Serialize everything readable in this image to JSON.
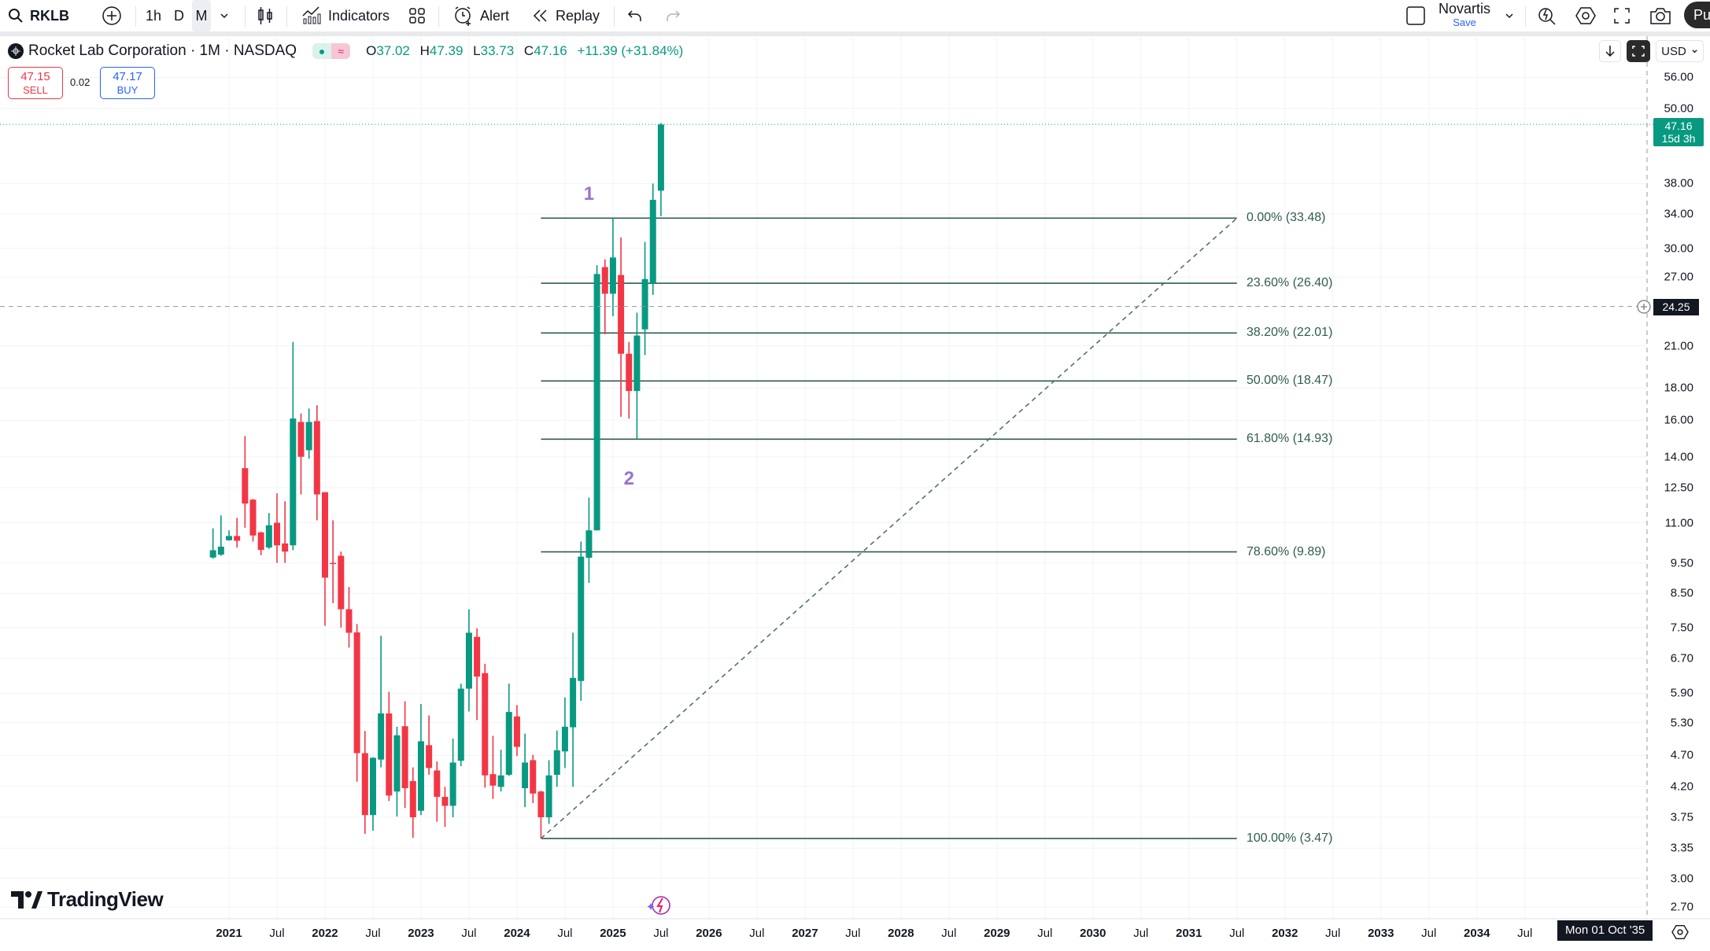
{
  "toolbar": {
    "symbol": "RKLB",
    "intervals": [
      "1h",
      "D",
      "M"
    ],
    "selected_interval": "M",
    "indicators_label": "Indicators",
    "alert_label": "Alert",
    "replay_label": "Replay",
    "layout_name": "Novartis",
    "save_label": "Save",
    "publish_label": "Pu"
  },
  "legend": {
    "title": "Rocket Lab Corporation · 1M · NASDAQ",
    "open_key": "O",
    "open": "37.02",
    "high_key": "H",
    "high": "47.39",
    "low_key": "L",
    "low": "33.73",
    "close_key": "C",
    "close": "47.16",
    "change": "+11.39 (+31.84%)"
  },
  "trade": {
    "sell_price": "47.15",
    "sell_label": "SELL",
    "spread": "0.02",
    "buy_price": "47.17",
    "buy_label": "BUY"
  },
  "currency": "USD",
  "colors": {
    "up": "#089981",
    "down": "#f23645",
    "fib": "#2f5d50",
    "wave_label": "#9575cd",
    "sell": "#f23645",
    "buy": "#2962ff"
  },
  "price_axis": {
    "ticks": [
      "56.00",
      "50.00",
      "38.00",
      "34.00",
      "30.00",
      "27.00",
      "21.00",
      "18.00",
      "16.00",
      "14.00",
      "12.50",
      "11.00",
      "9.50",
      "8.50",
      "7.50",
      "6.70",
      "5.90",
      "5.30",
      "4.70",
      "4.20",
      "3.75",
      "3.35",
      "3.00",
      "2.70"
    ],
    "last_price": "47.16",
    "countdown": "15d 3h",
    "crosshair_price": "24.25"
  },
  "time_axis": {
    "labels": [
      "2021",
      "Jul",
      "2022",
      "Jul",
      "2023",
      "Jul",
      "2024",
      "Jul",
      "2025",
      "Jul",
      "2026",
      "Jul",
      "2027",
      "Jul",
      "2028",
      "Jul",
      "2029",
      "Jul",
      "2030",
      "Jul",
      "2031",
      "Jul",
      "2032",
      "Jul",
      "2033",
      "Jul",
      "2034",
      "Jul"
    ],
    "crosshair_date": "Mon 01 Oct '35"
  },
  "wave_labels": [
    {
      "text": "1",
      "date": "2024-10",
      "price": 36.5
    },
    {
      "text": "2",
      "date": "2025-03",
      "price": 12.9
    }
  ],
  "branding": "TradingView",
  "chart_data": {
    "type": "candlestick",
    "scale": "log",
    "ylim": [
      2.6,
      58
    ],
    "fields": [
      "date",
      "open",
      "high",
      "low",
      "close"
    ],
    "candles": [
      [
        "2020-11",
        9.69,
        10.78,
        9.65,
        9.95
      ],
      [
        "2020-12",
        9.79,
        11.3,
        9.75,
        10.08
      ],
      [
        "2021-01",
        10.32,
        10.7,
        10.3,
        10.48
      ],
      [
        "2021-02",
        10.48,
        11.2,
        10.05,
        10.3
      ],
      [
        "2021-03",
        13.43,
        15.1,
        10.8,
        11.8
      ],
      [
        "2021-04",
        11.97,
        12.0,
        10.27,
        10.5
      ],
      [
        "2021-05",
        10.62,
        10.65,
        9.77,
        9.96
      ],
      [
        "2021-06",
        10.05,
        11.4,
        10.0,
        10.9
      ],
      [
        "2021-07",
        11.0,
        12.25,
        9.5,
        10.13
      ],
      [
        "2021-08",
        10.2,
        11.9,
        9.5,
        9.9
      ],
      [
        "2021-09",
        10.13,
        21.3,
        9.95,
        16.1
      ],
      [
        "2021-10",
        15.9,
        16.4,
        12.2,
        14.0
      ],
      [
        "2021-11",
        14.34,
        16.7,
        13.9,
        15.9
      ],
      [
        "2021-12",
        15.95,
        16.9,
        11.1,
        12.2
      ],
      [
        "2022-01",
        12.3,
        12.3,
        7.55,
        9.0
      ],
      [
        "2022-02",
        9.5,
        11.1,
        8.2,
        9.48
      ],
      [
        "2022-03",
        9.75,
        9.9,
        7.5,
        8.02
      ],
      [
        "2022-04",
        8.02,
        8.7,
        6.97,
        7.36
      ],
      [
        "2022-05",
        7.37,
        7.6,
        4.27,
        4.74
      ],
      [
        "2022-06",
        4.74,
        5.14,
        3.53,
        3.78
      ],
      [
        "2022-07",
        3.78,
        4.67,
        3.57,
        4.66
      ],
      [
        "2022-08",
        4.63,
        7.28,
        4.5,
        5.48
      ],
      [
        "2022-09",
        5.48,
        5.93,
        3.98,
        4.06
      ],
      [
        "2022-10",
        4.12,
        5.22,
        3.76,
        5.06
      ],
      [
        "2022-11",
        5.23,
        5.73,
        3.88,
        4.17
      ],
      [
        "2022-12",
        4.28,
        4.5,
        3.48,
        3.75
      ],
      [
        "2023-01",
        3.84,
        5.67,
        3.78,
        4.95
      ],
      [
        "2023-02",
        4.88,
        5.44,
        4.38,
        4.49
      ],
      [
        "2023-03",
        4.45,
        4.6,
        3.69,
        4.04
      ],
      [
        "2023-04",
        4.04,
        4.19,
        3.62,
        3.91
      ],
      [
        "2023-05",
        3.91,
        5.0,
        3.75,
        4.58
      ],
      [
        "2023-06",
        4.61,
        6.11,
        4.52,
        6.0
      ],
      [
        "2023-07",
        6.0,
        8.02,
        5.52,
        7.36
      ],
      [
        "2023-08",
        7.25,
        7.48,
        5.35,
        6.27
      ],
      [
        "2023-09",
        6.35,
        6.57,
        4.18,
        4.37
      ],
      [
        "2023-10",
        4.39,
        5.05,
        4.01,
        4.21
      ],
      [
        "2023-11",
        4.19,
        4.8,
        4.12,
        4.37
      ],
      [
        "2023-12",
        4.38,
        6.11,
        4.36,
        5.51
      ],
      [
        "2024-01",
        5.42,
        5.65,
        4.69,
        4.85
      ],
      [
        "2024-02",
        4.17,
        5.09,
        3.89,
        4.58
      ],
      [
        "2024-03",
        4.62,
        4.71,
        3.95,
        4.09
      ],
      [
        "2024-04",
        4.12,
        4.13,
        3.47,
        3.75
      ],
      [
        "2024-05",
        3.75,
        4.62,
        3.66,
        4.37
      ],
      [
        "2024-06",
        4.38,
        5.15,
        4.19,
        4.79
      ],
      [
        "2024-07",
        4.77,
        5.81,
        4.49,
        5.22
      ],
      [
        "2024-08",
        5.21,
        7.36,
        4.19,
        6.24
      ],
      [
        "2024-09",
        6.17,
        10.27,
        5.74,
        9.72
      ],
      [
        "2024-10",
        9.68,
        12.06,
        8.83,
        10.7
      ],
      [
        "2024-11",
        10.7,
        28.2,
        10.7,
        27.3
      ],
      [
        "2024-12",
        28.0,
        28.8,
        21.9,
        25.4
      ],
      [
        "2025-01",
        25.4,
        33.48,
        23.4,
        29.0
      ],
      [
        "2025-02",
        27.2,
        31.2,
        16.2,
        20.4
      ],
      [
        "2025-03",
        20.4,
        21.3,
        16.1,
        17.8
      ],
      [
        "2025-04",
        17.8,
        23.7,
        14.93,
        21.8
      ],
      [
        "2025-05",
        22.3,
        30.7,
        20.3,
        26.8
      ],
      [
        "2025-06",
        26.4,
        38.0,
        25.3,
        35.8
      ],
      [
        "2025-07",
        37.02,
        47.39,
        33.73,
        47.16
      ]
    ],
    "fib_retracement": {
      "from": {
        "date": "2024-04",
        "price": 3.47
      },
      "to": {
        "date": "2031-07",
        "price": 33.48
      },
      "levels": [
        {
          "price": 33.48,
          "label": "0.00% (33.48)"
        },
        {
          "price": 26.4,
          "label": "23.60% (26.40)"
        },
        {
          "price": 22.01,
          "label": "38.20% (22.01)"
        },
        {
          "price": 18.47,
          "label": "50.00% (18.47)"
        },
        {
          "price": 14.93,
          "label": "61.80% (14.93)"
        },
        {
          "price": 9.89,
          "label": "78.60% (9.89)"
        },
        {
          "price": 3.47,
          "label": "100.00% (3.47)"
        }
      ]
    }
  }
}
